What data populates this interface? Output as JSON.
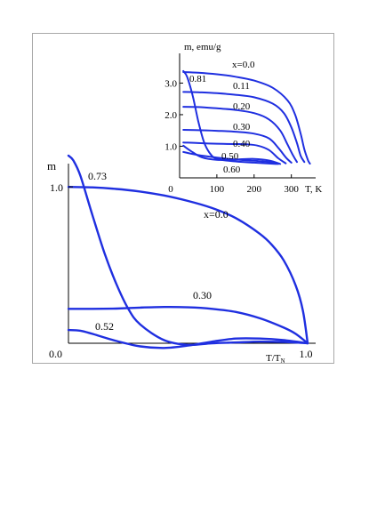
{
  "colors": {
    "curve": "#1f2fe0",
    "axis": "#000000",
    "frame": "#a8a8a8"
  },
  "chart_data": [
    {
      "type": "line",
      "panel": "main",
      "ylabel": "m",
      "xlabel": {
        "main": "T/T",
        "sub": "N"
      },
      "xlim": [
        0,
        1.0
      ],
      "ylim": [
        0,
        1.2
      ],
      "x_ticks": [
        {
          "value": 0,
          "label": "0.0"
        },
        {
          "value": 1.0,
          "label": "1.0"
        }
      ],
      "y_ticks": [
        {
          "value": 1.0,
          "label": "1.0"
        }
      ],
      "grid": false,
      "series": [
        {
          "name": "x=0.0",
          "x": [
            0,
            0.1,
            0.2,
            0.3,
            0.4,
            0.5,
            0.6,
            0.7,
            0.8,
            0.85,
            0.9,
            0.95,
            0.98,
            1.0
          ],
          "y": [
            1.0,
            0.997,
            0.987,
            0.97,
            0.945,
            0.91,
            0.865,
            0.8,
            0.7,
            0.63,
            0.53,
            0.37,
            0.21,
            0.0
          ]
        },
        {
          "name": "0.30",
          "x": [
            0,
            0.1,
            0.2,
            0.3,
            0.4,
            0.5,
            0.6,
            0.7,
            0.8,
            0.9,
            0.95,
            1.0
          ],
          "y": [
            0.22,
            0.22,
            0.222,
            0.228,
            0.232,
            0.23,
            0.22,
            0.2,
            0.16,
            0.1,
            0.06,
            0.0
          ]
        },
        {
          "name": "0.52",
          "x": [
            0,
            0.05,
            0.1,
            0.2,
            0.3,
            0.4,
            0.5,
            0.6,
            0.7,
            0.8,
            0.9,
            1.0
          ],
          "y": [
            0.085,
            0.08,
            0.06,
            0.015,
            -0.02,
            -0.03,
            -0.015,
            0.01,
            0.03,
            0.03,
            0.02,
            0.0
          ]
        },
        {
          "name": "0.73",
          "x": [
            0,
            0.02,
            0.05,
            0.1,
            0.15,
            0.2,
            0.25,
            0.3,
            0.4,
            0.5,
            0.6,
            0.7,
            0.8,
            0.9,
            1.0
          ],
          "y": [
            1.2,
            1.17,
            1.07,
            0.82,
            0.58,
            0.38,
            0.22,
            0.12,
            0.02,
            -0.01,
            0.0,
            0.005,
            0.01,
            0.008,
            0.0
          ]
        }
      ],
      "annotations": [
        "0.73",
        "x=0.0",
        "0.30",
        "0.52"
      ]
    },
    {
      "type": "line",
      "panel": "inset",
      "ylabel": "m, emu/g",
      "xlabel": "T, K",
      "xlim": [
        0,
        370
      ],
      "ylim": [
        0,
        3.8
      ],
      "x_ticks": [
        {
          "value": 0,
          "label": "0"
        },
        {
          "value": 100,
          "label": "100"
        },
        {
          "value": 200,
          "label": "200"
        },
        {
          "value": 300,
          "label": "300"
        }
      ],
      "y_ticks": [
        {
          "value": 1.0,
          "label": "1.0"
        },
        {
          "value": 2.0,
          "label": "2.0"
        },
        {
          "value": 3.0,
          "label": "3.0"
        }
      ],
      "grid": false,
      "series": [
        {
          "name": "x=0.0",
          "x": [
            10,
            50,
            100,
            150,
            200,
            250,
            290,
            310,
            325,
            335,
            345,
            350
          ],
          "y": [
            3.35,
            3.33,
            3.28,
            3.2,
            3.08,
            2.85,
            2.45,
            2.0,
            1.4,
            0.9,
            0.55,
            0.45
          ]
        },
        {
          "name": "0.11",
          "x": [
            10,
            50,
            100,
            150,
            200,
            250,
            280,
            300,
            315,
            325,
            335
          ],
          "y": [
            2.72,
            2.71,
            2.68,
            2.63,
            2.55,
            2.35,
            2.05,
            1.6,
            1.1,
            0.7,
            0.5
          ]
        },
        {
          "name": "0.20",
          "x": [
            10,
            50,
            100,
            150,
            200,
            240,
            270,
            290,
            305,
            315
          ],
          "y": [
            2.25,
            2.24,
            2.2,
            2.15,
            2.05,
            1.85,
            1.5,
            1.05,
            0.7,
            0.5
          ]
        },
        {
          "name": "0.30",
          "x": [
            10,
            50,
            100,
            150,
            200,
            240,
            265,
            285,
            300
          ],
          "y": [
            1.52,
            1.51,
            1.49,
            1.46,
            1.4,
            1.25,
            0.95,
            0.65,
            0.48
          ]
        },
        {
          "name": "0.40",
          "x": [
            10,
            50,
            100,
            150,
            180,
            210,
            240,
            265,
            285
          ],
          "y": [
            1.12,
            1.1,
            1.08,
            1.07,
            1.06,
            1.02,
            0.88,
            0.62,
            0.46
          ]
        },
        {
          "name": "0.50",
          "x": [
            10,
            30,
            60,
            100,
            150,
            200,
            240,
            270
          ],
          "y": [
            1.02,
            0.85,
            0.65,
            0.57,
            0.58,
            0.6,
            0.55,
            0.44
          ]
        },
        {
          "name": "0.60",
          "x": [
            10,
            50,
            100,
            150,
            200,
            240,
            265
          ],
          "y": [
            0.82,
            0.72,
            0.64,
            0.58,
            0.54,
            0.5,
            0.44
          ]
        },
        {
          "name": "0.81",
          "x": [
            10,
            20,
            35,
            50,
            65,
            80,
            100,
            150,
            200,
            260
          ],
          "y": [
            3.38,
            3.2,
            2.6,
            1.8,
            1.15,
            0.8,
            0.6,
            0.52,
            0.48,
            0.44
          ]
        }
      ],
      "annotations": [
        "x=0.0",
        "0.81",
        "0.11",
        "0.20",
        "0.30",
        "0.40",
        "0.50",
        "0.60"
      ]
    }
  ]
}
